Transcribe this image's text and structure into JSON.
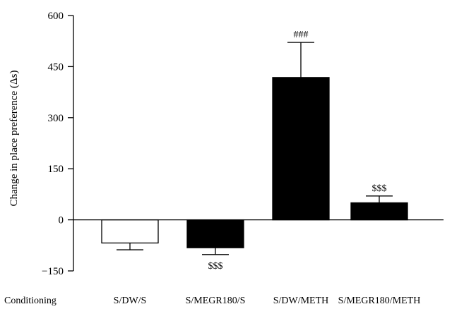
{
  "chart_data": {
    "type": "bar",
    "title": "",
    "xlabel": "",
    "ylabel": "Change in place preference (Δs)",
    "ylim": [
      -150,
      600
    ],
    "yticks": [
      600,
      450,
      300,
      150,
      0,
      -150
    ],
    "ytick_labels": [
      "600",
      "450",
      "300",
      "150",
      "0",
      "−150"
    ],
    "row_label": "Conditioning",
    "categories": [
      "S/DW/S",
      "S/MEGR180/S",
      "S/DW/METH",
      "S/MEGR180/METH"
    ],
    "values": [
      -68,
      -82,
      418,
      50
    ],
    "errors": [
      20,
      20,
      103,
      20
    ],
    "bar_fill": [
      "#ffffff",
      "#000000",
      "#000000",
      "#000000"
    ],
    "annotations": [
      "",
      "$$$",
      "###",
      "$$$"
    ],
    "annotation_position": [
      "none",
      "below",
      "above",
      "above"
    ],
    "colors": {
      "axis": "#000000",
      "bar": "#000000",
      "bar_open": "#ffffff"
    }
  }
}
